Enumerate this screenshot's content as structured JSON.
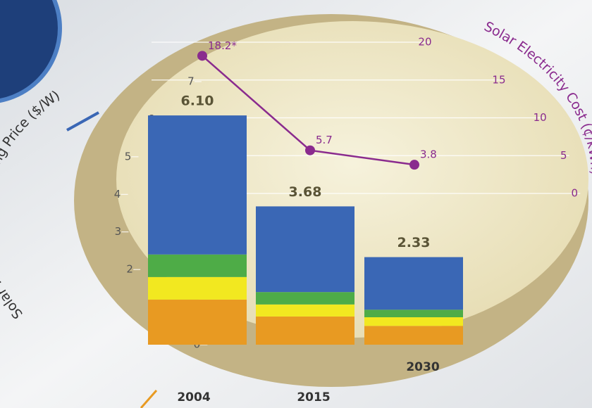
{
  "chart_data": {
    "type": "stacked-bar-line",
    "categories": [
      "2004",
      "2015",
      "2030"
    ],
    "series": [
      {
        "color": "#e89a22",
        "values": [
          1.2,
          0.75,
          0.5
        ]
      },
      {
        "color": "#f2e820",
        "values": [
          0.6,
          0.32,
          0.23
        ]
      },
      {
        "color": "#4eac47",
        "values": [
          0.6,
          0.33,
          0.2
        ]
      },
      {
        "color": "#3a67b5",
        "values": [
          3.7,
          2.28,
          1.4
        ]
      }
    ],
    "totals": {
      "values": [
        6.1,
        3.68,
        2.33
      ],
      "value_labels": [
        "6.10",
        "3.68",
        "2.33"
      ]
    },
    "line": {
      "color": "#8a2b8e",
      "axis": "y2",
      "values": [
        18.2,
        5.7,
        3.8
      ],
      "value_labels": [
        "18.2*",
        "5.7",
        "3.8"
      ]
    },
    "ylabel": "Solar Power System Selling Price ($/W)",
    "y2label": "Solar Electricity Cost (¢/kWh)",
    "ylim": [
      0,
      7
    ],
    "yticks": [
      0,
      1,
      2,
      3,
      4,
      5,
      6,
      7
    ],
    "y2lim": [
      0,
      20
    ],
    "y2ticks": [
      0,
      5,
      10,
      15,
      20
    ],
    "grid": true
  }
}
